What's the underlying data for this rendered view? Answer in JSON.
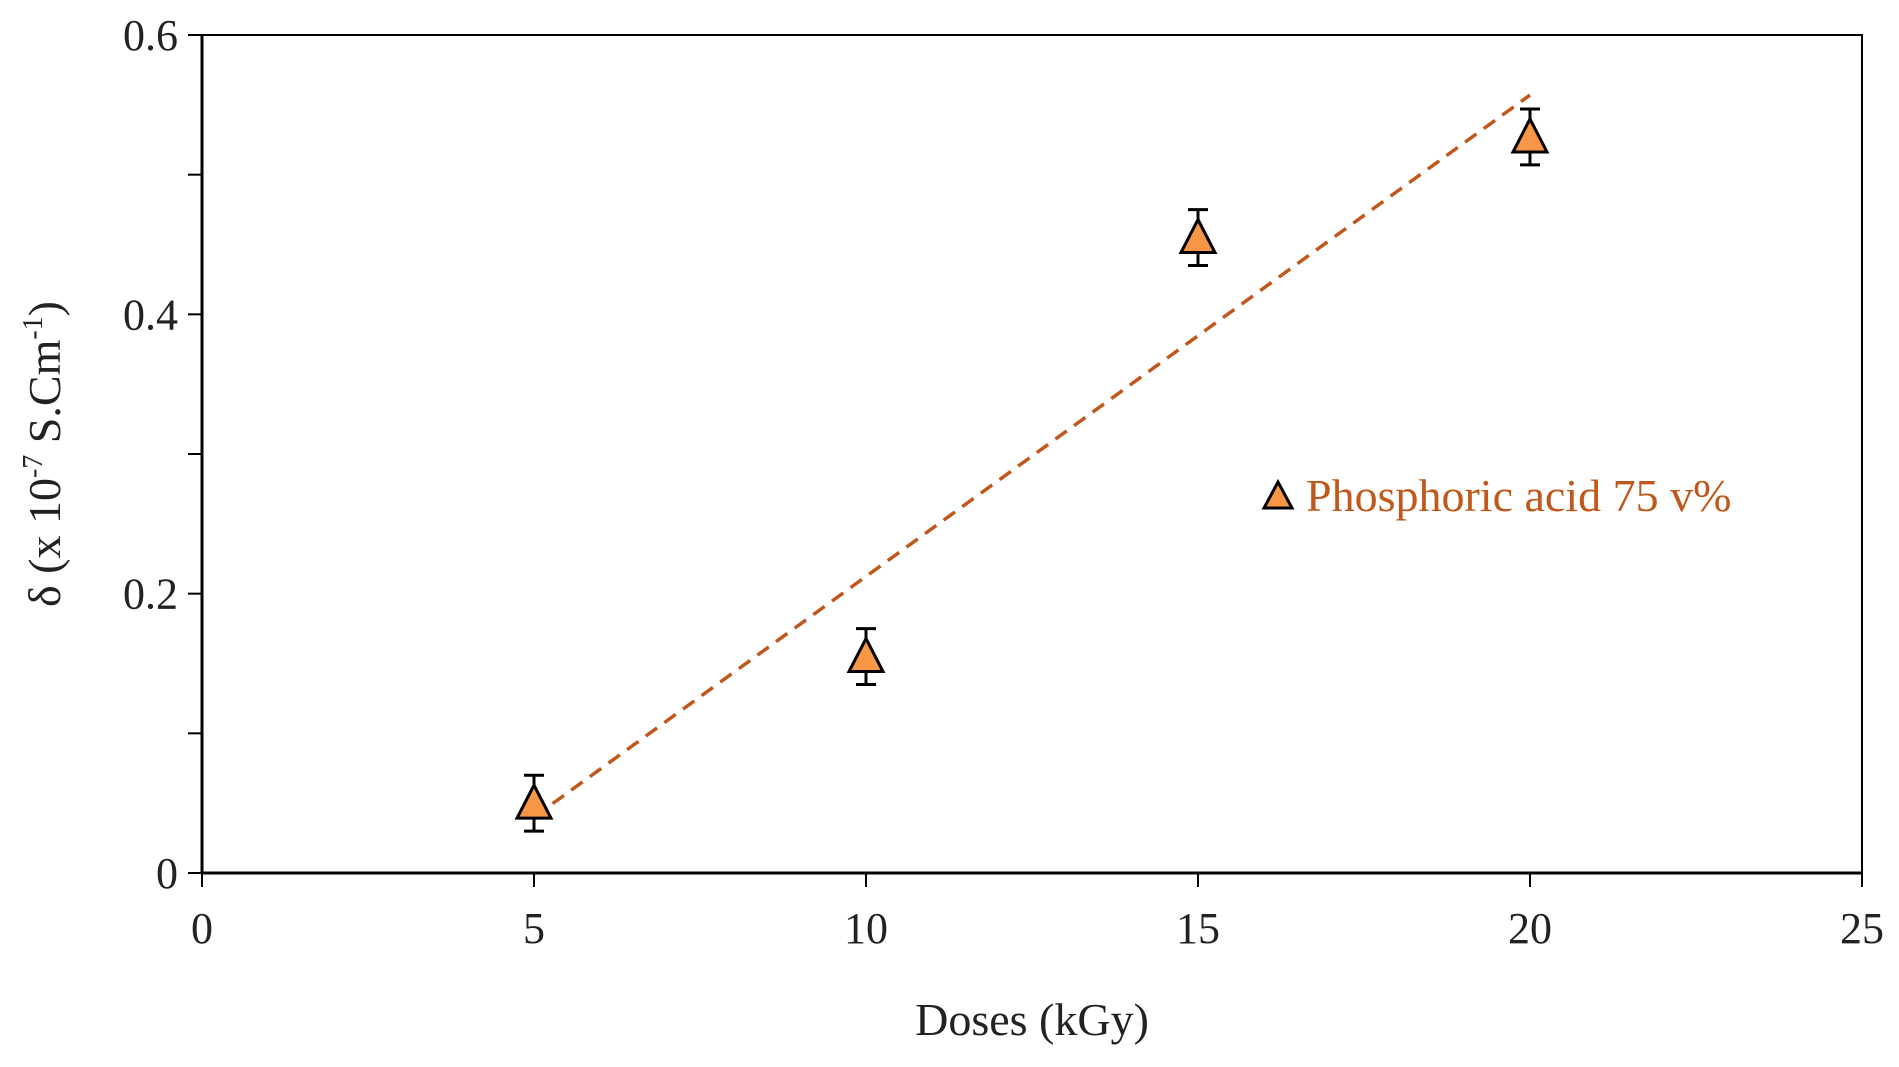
{
  "chart_data": {
    "type": "scatter",
    "x_label": "Doses (kGy)",
    "y_label": {
      "prefix": "δ (x 10",
      "exponent": "-7",
      "middle": " S.Cm",
      "exponent2": "-1",
      "suffix": ")"
    },
    "x_range": [
      0,
      25
    ],
    "y_range": [
      0,
      0.6
    ],
    "x_ticks": [
      0,
      5,
      10,
      15,
      20,
      25
    ],
    "x_tick_labels": [
      "0",
      "5",
      "10",
      "15",
      "20",
      "25"
    ],
    "y_ticks_labeled": [
      0,
      0.2,
      0.4,
      0.6
    ],
    "y_tick_labels": [
      "0",
      "0.2",
      "0.4",
      "0.6"
    ],
    "y_ticks_minor": [
      0.1,
      0.3,
      0.5
    ],
    "grid": false,
    "legend_position": "right",
    "series": [
      {
        "name": "Phosphoric acid 75 v%",
        "marker": "triangle",
        "marker_color": "#F79646",
        "marker_edge": "#000000",
        "text_color": "#C0581C",
        "x": [
          5,
          10,
          15,
          20
        ],
        "y": [
          0.05,
          0.155,
          0.455,
          0.527
        ],
        "error": [
          0.02,
          0.02,
          0.02,
          0.02
        ],
        "trendline": {
          "style": "dashed",
          "color": "#C0581C",
          "x_start": 5,
          "x_end": 20,
          "y_start": 0.04,
          "y_end": 0.557
        }
      }
    ]
  }
}
